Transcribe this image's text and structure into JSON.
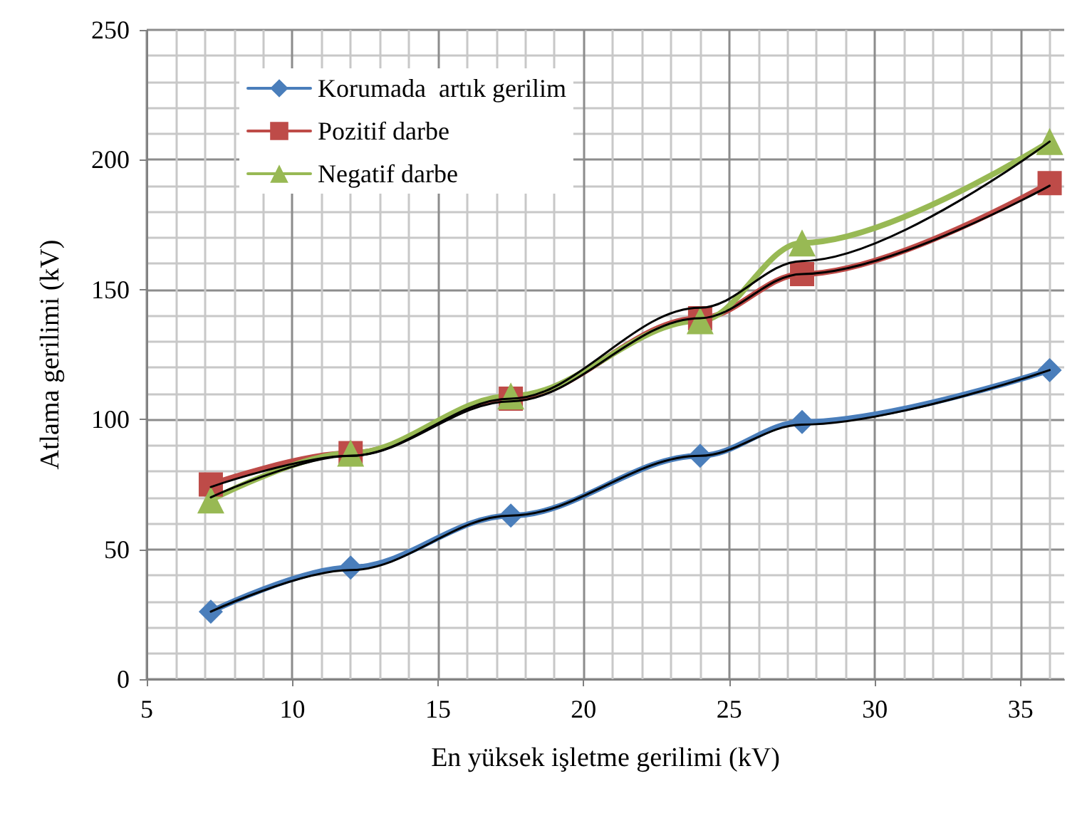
{
  "chart_data": {
    "type": "line",
    "xlabel": "En yüksek işletme gerilimi (kV)",
    "ylabel": "Atlama gerilimi (kV)",
    "x": [
      7.2,
      12,
      17.5,
      24,
      27.5,
      36
    ],
    "xlim": [
      5,
      36.5
    ],
    "xticks": [
      5,
      10,
      15,
      20,
      25,
      30,
      35
    ],
    "ylim": [
      0,
      250
    ],
    "yticks": [
      0,
      50,
      100,
      150,
      200,
      250
    ],
    "grid": true,
    "legend": "top left",
    "series": [
      {
        "name": "Korumada  artık gerilim",
        "color": "#4a7ebb",
        "marker": "diamond",
        "values": [
          26,
          43,
          63,
          86,
          99,
          119
        ]
      },
      {
        "name": "Pozitif darbe",
        "color": "#be4b48",
        "marker": "square",
        "values": [
          75,
          87,
          108,
          139,
          156,
          191
        ]
      },
      {
        "name": "Negatif darbe",
        "color": "#98b954",
        "marker": "triangle",
        "values": [
          69,
          87,
          109,
          138,
          168,
          207
        ]
      },
      {
        "type": "line",
        "color": "#000000",
        "marker": "none",
        "x": [
          7.2,
          12,
          17.5,
          24,
          27.5,
          36
        ],
        "values": [
          26,
          42,
          63,
          86,
          98,
          119
        ]
      },
      {
        "type": "line",
        "color": "#000000",
        "marker": "none",
        "x": [
          7.2,
          12,
          17.5,
          24,
          27.5,
          36
        ],
        "values": [
          74,
          86,
          107,
          139,
          156,
          190
        ]
      },
      {
        "type": "line",
        "color": "#000000",
        "marker": "none",
        "x": [
          7.2,
          12,
          17.5,
          24,
          27.5,
          36
        ],
        "values": [
          70,
          86,
          108,
          143,
          161,
          207
        ]
      }
    ]
  }
}
